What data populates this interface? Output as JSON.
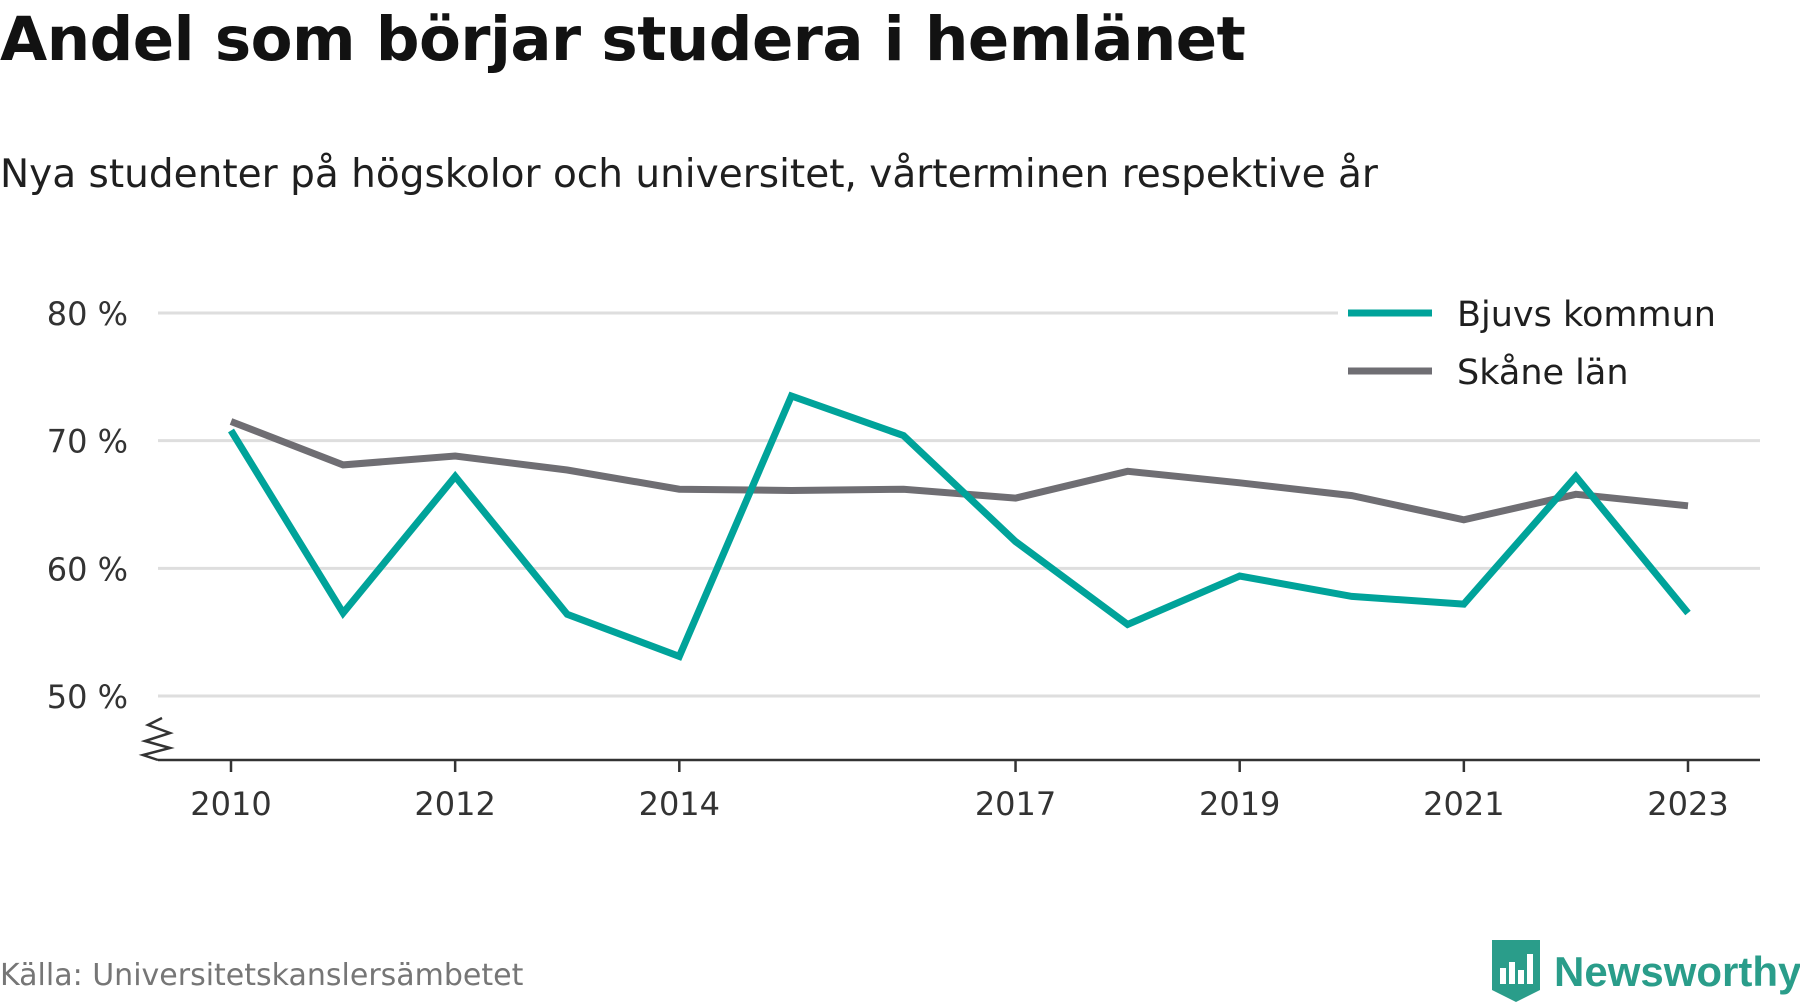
{
  "header": {
    "title": "Andel som börjar studera i hemlänet",
    "subtitle": "Nya studenter på högskolor och universitet, vårterminen respektive år"
  },
  "footer": {
    "source": "Källa: Universitetskanslersämbetet",
    "brand": "Newsworthy",
    "brand_icon": "bar-chart-badge-icon"
  },
  "colors": {
    "bjuv": "#00a39a",
    "skane": "#6f6e73",
    "grid": "#dedede",
    "axis": "#333333",
    "brand": "#2a9d8a"
  },
  "chart_data": {
    "type": "line",
    "title": "Andel som börjar studera i hemlänet",
    "subtitle": "Nya studenter på högskolor och universitet, vårterminen respektive år",
    "x": [
      2010,
      2011,
      2012,
      2013,
      2014,
      2015,
      2016,
      2017,
      2018,
      2019,
      2020,
      2021,
      2022,
      2023
    ],
    "x_ticks": [
      2010,
      2012,
      2014,
      2017,
      2019,
      2021,
      2023
    ],
    "x_tick_labels": [
      "2010",
      "2012",
      "2014",
      "2017",
      "2019",
      "2021",
      "2023"
    ],
    "y_ticks": [
      50,
      60,
      70,
      80
    ],
    "y_tick_labels": [
      "50 %",
      "60 %",
      "70 %",
      "80 %"
    ],
    "ylim": [
      45,
      80
    ],
    "y_axis_break": true,
    "grid": true,
    "legend_position": "top-right",
    "series": [
      {
        "name": "Bjuvs kommun",
        "color": "#00a39a",
        "values": [
          70.8,
          56.5,
          67.2,
          56.4,
          53.1,
          73.5,
          70.4,
          62.1,
          55.6,
          59.4,
          57.8,
          57.2,
          67.2,
          56.5
        ]
      },
      {
        "name": "Skåne län",
        "color": "#6f6e73",
        "values": [
          71.5,
          68.1,
          68.8,
          67.7,
          66.2,
          66.1,
          66.2,
          65.5,
          67.6,
          66.7,
          65.7,
          63.8,
          65.8,
          64.9
        ]
      }
    ],
    "xlabel": "",
    "ylabel": ""
  }
}
